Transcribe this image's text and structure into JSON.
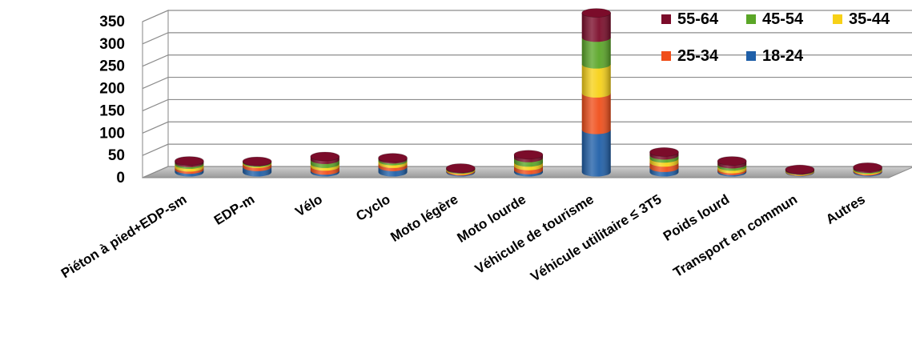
{
  "chart_data": {
    "type": "bar",
    "stacked": true,
    "three_d": true,
    "categories": [
      "Piéton à pied+EDP-sm",
      "EDP-m",
      "Vélo",
      "Cyclo",
      "Moto légère",
      "Moto lourde",
      "Véhicule de tourisme",
      "Véhicule utilitaire ≤ 3T5",
      "Poids lourd",
      "Transport en commun",
      "Autres"
    ],
    "series": [
      {
        "name": "18-24",
        "color": "#1f5fa8",
        "values": [
          6,
          12,
          4,
          12,
          2,
          5,
          95,
          10,
          3,
          1,
          2
        ]
      },
      {
        "name": "25-34",
        "color": "#f04e1a",
        "values": [
          5,
          7,
          9,
          7,
          2,
          9,
          82,
          12,
          4,
          1,
          2
        ]
      },
      {
        "name": "35-44",
        "color": "#f7d117",
        "values": [
          6,
          2,
          6,
          6,
          2,
          8,
          65,
          9,
          6,
          1,
          2
        ]
      },
      {
        "name": "45-54",
        "color": "#5aa627",
        "values": [
          4,
          2,
          9,
          4,
          1,
          10,
          60,
          7,
          5,
          1,
          2
        ]
      },
      {
        "name": "55-64",
        "color": "#7b0c2a",
        "values": [
          4,
          1,
          7,
          3,
          2,
          7,
          55,
          7,
          7,
          2,
          3
        ]
      }
    ],
    "yticks": [
      "350",
      "300",
      "250",
      "200",
      "150",
      "100",
      "50",
      "0"
    ],
    "ylim": [
      0,
      350
    ],
    "grid": true,
    "legend_position": "top-right",
    "title": "",
    "xlabel": "",
    "ylabel": ""
  }
}
